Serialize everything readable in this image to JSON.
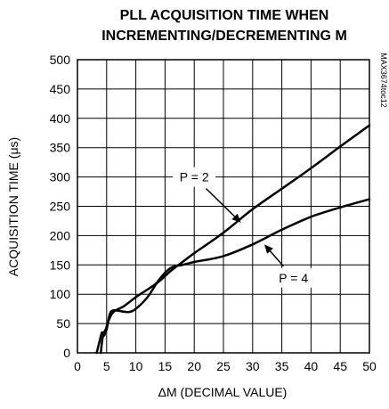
{
  "chart_data": {
    "type": "line",
    "title_lines": [
      "PLL ACQUISITION TIME WHEN",
      "INCREMENTING/DECREMENTING M"
    ],
    "xlabel": "ΔM (DECIMAL VALUE)",
    "ylabel": "ACQUISITION TIME (μs)",
    "xlim": [
      0,
      50
    ],
    "ylim": [
      0,
      500
    ],
    "x_ticks": [
      "0",
      "5",
      "10",
      "15",
      "20",
      "25",
      "30",
      "35",
      "40",
      "45",
      "50"
    ],
    "y_ticks": [
      "0",
      "50",
      "100",
      "150",
      "200",
      "250",
      "300",
      "350",
      "400",
      "450",
      "500"
    ],
    "grid": true,
    "watermark": "MAX3674toc12",
    "series": [
      {
        "name": "P = 2",
        "x": [
          3.3,
          3.8,
          4.2,
          4.6,
          5.0,
          6,
          8,
          10,
          12,
          14,
          16,
          18,
          20,
          25,
          30,
          35,
          40,
          45,
          50
        ],
        "y": [
          0,
          20,
          35,
          30,
          45,
          68,
          80,
          95,
          108,
          122,
          140,
          155,
          170,
          205,
          245,
          280,
          315,
          352,
          388
        ]
      },
      {
        "name": "P = 4",
        "x": [
          4.0,
          4.3,
          4.7,
          5.0,
          5.5,
          6,
          7,
          8,
          9,
          10,
          12,
          14,
          16,
          18,
          20,
          25,
          30,
          35,
          40,
          45,
          50
        ],
        "y": [
          0,
          25,
          38,
          40,
          65,
          72,
          72,
          70,
          70,
          75,
          95,
          125,
          145,
          150,
          155,
          165,
          185,
          210,
          232,
          248,
          262
        ]
      }
    ],
    "annotations": [
      {
        "text": "P = 2",
        "series": "P = 2",
        "target": [
          28,
          222
        ],
        "label_at": [
          20,
          300
        ]
      },
      {
        "text": "P = 4",
        "series": "P = 4",
        "target": [
          32,
          185
        ],
        "label_at": [
          37,
          128
        ]
      }
    ]
  }
}
